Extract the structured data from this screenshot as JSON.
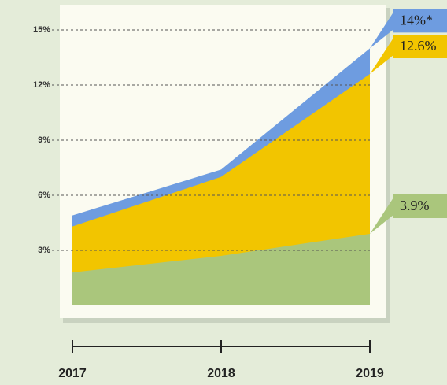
{
  "chart_data": {
    "type": "area",
    "categories": [
      "2017",
      "2018",
      "2019"
    ],
    "series": [
      {
        "color": "#6e9ce0",
        "values": [
          4.9,
          7.4,
          14
        ],
        "value_labels": [
          null,
          null,
          "14%*"
        ]
      },
      {
        "color": "#f2c500",
        "values": [
          4.3,
          7.0,
          12.6
        ],
        "value_labels": [
          null,
          null,
          "12.6%"
        ]
      },
      {
        "color": "#aac67c",
        "values": [
          1.8,
          2.7,
          3.9
        ],
        "value_labels": [
          null,
          null,
          "3.9%"
        ]
      }
    ],
    "ylim": [
      0,
      16.2
    ],
    "yticks": [
      {
        "value": 3,
        "label": "3%"
      },
      {
        "value": 6,
        "label": "6%"
      },
      {
        "value": 9,
        "label": "9%"
      },
      {
        "value": 12,
        "label": "12%"
      },
      {
        "value": 15,
        "label": "15%"
      }
    ],
    "grid": true
  }
}
